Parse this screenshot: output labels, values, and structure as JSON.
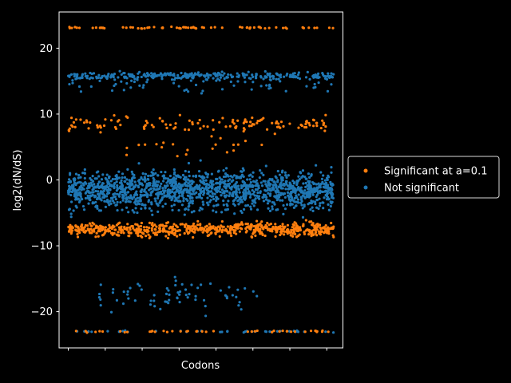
{
  "chart_data": {
    "type": "scatter",
    "title": "",
    "xlabel": "Codons",
    "ylabel": "log2(dN/dS)",
    "xlim": [
      -80,
      2380
    ],
    "ylim": [
      -25.5,
      25.5
    ],
    "yticks": [
      -20,
      -10,
      0,
      10,
      20
    ],
    "xticks": [
      0,
      320,
      640,
      960,
      1280,
      1600,
      1920,
      2240
    ],
    "grid": false,
    "legend": "right-outside",
    "series": [
      {
        "name": "Significant at a=0.1",
        "color": "#ff7f0e",
        "bands": [
          {
            "y_center": 23.1,
            "y_spread": 0.15,
            "count": 70,
            "x_range": [
              0,
              2300
            ]
          },
          {
            "y_center": 8.5,
            "y_spread": 1.3,
            "count": 130,
            "x_range": [
              0,
              2300
            ]
          },
          {
            "y_center": 5.0,
            "y_spread": 1.5,
            "count": 20,
            "x_range": [
              500,
              1700
            ]
          },
          {
            "y_center": -7.5,
            "y_spread": 1.1,
            "count": 650,
            "x_range": [
              0,
              2300
            ]
          },
          {
            "y_center": -23.0,
            "y_spread": 0.15,
            "count": 45,
            "x_range": [
              0,
              2300
            ]
          }
        ]
      },
      {
        "name": "Not significant",
        "color": "#1f77b4",
        "bands": [
          {
            "y_center": 15.8,
            "y_spread": 0.6,
            "count": 300,
            "x_range": [
              0,
              2300
            ]
          },
          {
            "y_center": 14.5,
            "y_spread": 1.5,
            "count": 60,
            "x_range": [
              0,
              2300
            ]
          },
          {
            "y_center": -1.5,
            "y_spread": 3.0,
            "count": 1500,
            "x_range": [
              0,
              2300
            ]
          },
          {
            "y_center": -17.5,
            "y_spread": 2.5,
            "count": 70,
            "x_range": [
              250,
              1650
            ]
          },
          {
            "y_center": -23.0,
            "y_spread": 0.15,
            "count": 40,
            "x_range": [
              0,
              2300
            ]
          }
        ]
      }
    ]
  }
}
